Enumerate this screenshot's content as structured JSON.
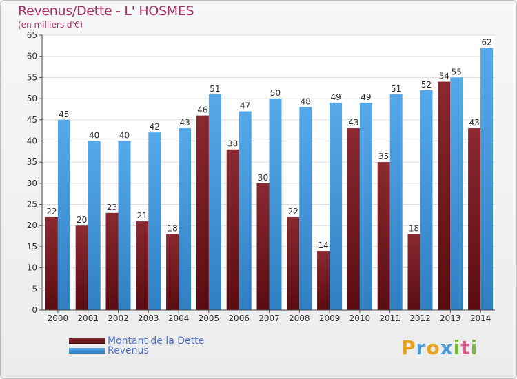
{
  "title": "Revenus/Dette - L' HOSMES",
  "subtitle": "(en milliers d'€)",
  "colors": {
    "dette": "#6e1c22",
    "revenus": "#3e93d8",
    "title": "#b0306a",
    "legend_text": "#4d6fd8"
  },
  "legend": {
    "dette_label": "Montant de la Dette",
    "revenus_label": "Revenus"
  },
  "logo": {
    "text": "Proxiti"
  },
  "chart_data": {
    "type": "bar",
    "categories": [
      "2000",
      "2001",
      "2002",
      "2003",
      "2004",
      "2005",
      "2006",
      "2007",
      "2008",
      "2009",
      "2010",
      "2011",
      "2012",
      "2013",
      "2014"
    ],
    "series": [
      {
        "name": "Montant de la Dette",
        "values": [
          22,
          20,
          23,
          21,
          18,
          46,
          38,
          30,
          22,
          14,
          43,
          35,
          18,
          54,
          43
        ]
      },
      {
        "name": "Revenus",
        "values": [
          45,
          40,
          40,
          42,
          43,
          51,
          47,
          50,
          48,
          49,
          49,
          51,
          52,
          55,
          62
        ]
      }
    ],
    "ylim": [
      0,
      65
    ],
    "yticks": [
      0,
      5,
      10,
      15,
      20,
      25,
      30,
      35,
      40,
      45,
      50,
      55,
      60,
      65
    ],
    "grid": true,
    "legend_position": "bottom-left"
  }
}
